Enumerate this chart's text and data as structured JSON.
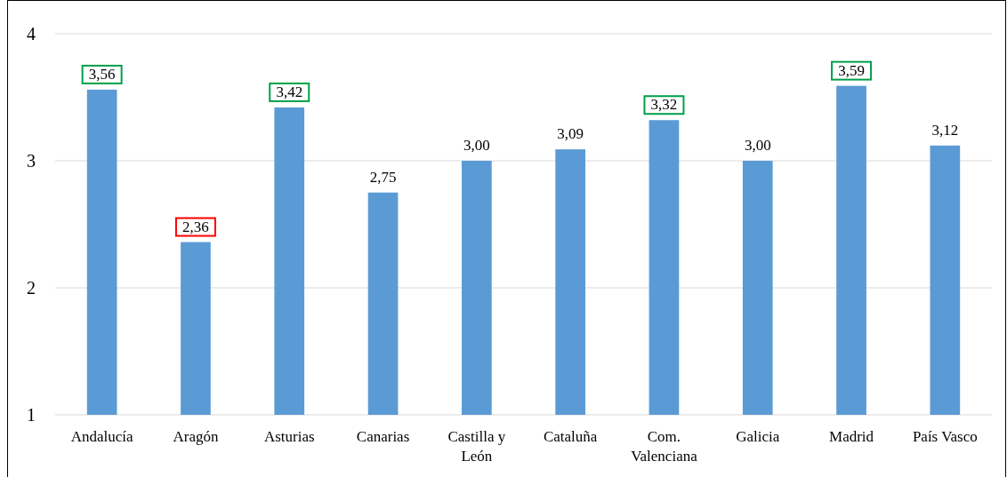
{
  "chart_data": {
    "type": "bar",
    "categories": [
      "Andalucía",
      "Aragón",
      "Asturias",
      "Canarias",
      "Castilla y León",
      "Cataluña",
      "Com. Valenciana",
      "Galicia",
      "Madrid",
      "País Vasco"
    ],
    "values": [
      3.56,
      2.36,
      3.42,
      2.75,
      3.0,
      3.09,
      3.32,
      3.0,
      3.59,
      3.12
    ],
    "value_labels": [
      "3,56",
      "2,36",
      "3,42",
      "2,75",
      "3,00",
      "3,09",
      "3,32",
      "3,00",
      "3,59",
      "3,12"
    ],
    "color": "#5b9bd5",
    "ylim": [
      1,
      4
    ],
    "yticks": [
      1,
      2,
      3,
      4
    ],
    "grid": "y"
  }
}
